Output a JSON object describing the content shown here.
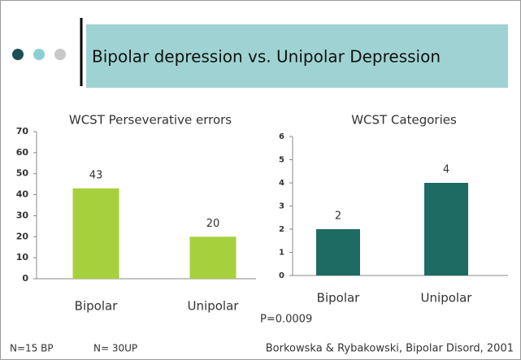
{
  "slide": {
    "title": "Bipolar depression vs. Unipolar Depression",
    "p_value": "P=0.0009",
    "notes": [
      "N=15 BP",
      "N= 30UP"
    ],
    "citation": "Borkowska & Rybakowski, Bipolar Disord, 2001"
  },
  "chart_data": [
    {
      "type": "bar",
      "title": "WCST Perseverative errors",
      "categories": [
        "Bipolar",
        "Unipolar"
      ],
      "values": [
        43,
        20
      ],
      "color": "#a6d13d",
      "ylim": [
        0,
        70
      ],
      "yticks": [
        0,
        10,
        20,
        30,
        40,
        50,
        60,
        70
      ],
      "grid": false
    },
    {
      "type": "bar",
      "title": "WCST Categories",
      "categories": [
        "Bipolar",
        "Unipolar"
      ],
      "values": [
        2,
        4
      ],
      "color": "#1e6b63",
      "ylim": [
        0,
        6
      ],
      "yticks": [
        0,
        1,
        2,
        3,
        4,
        5,
        6
      ],
      "grid": false
    }
  ]
}
